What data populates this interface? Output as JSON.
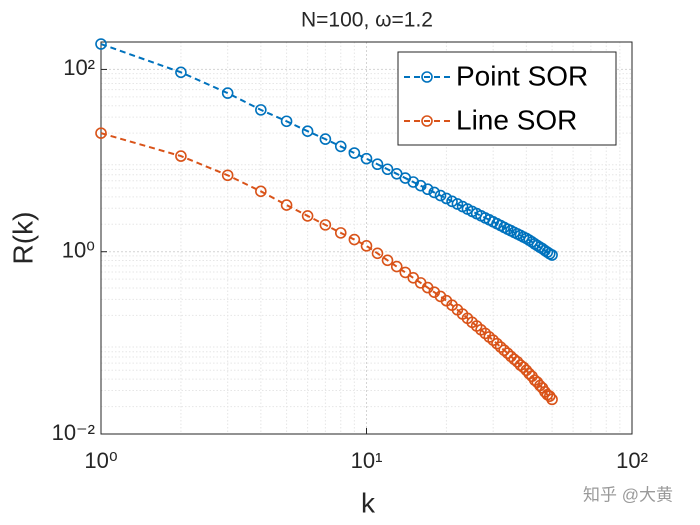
{
  "chart_data": {
    "type": "line",
    "title": "N=100, ω=1.2",
    "xlabel": "k",
    "ylabel": "R(k)",
    "x": [
      1,
      2,
      3,
      4,
      5,
      6,
      7,
      8,
      9,
      10,
      11,
      12,
      13,
      14,
      15,
      16,
      17,
      18,
      19,
      20,
      21,
      22,
      23,
      24,
      25,
      26,
      27,
      28,
      29,
      30,
      31,
      32,
      33,
      34,
      35,
      36,
      37,
      38,
      39,
      40,
      41,
      42,
      43,
      44,
      45,
      46,
      47,
      48,
      49,
      50
    ],
    "series": [
      {
        "name": "Point SOR",
        "color": "#0072BD",
        "values": [
          190,
          93,
          55,
          36,
          27,
          21,
          17.2,
          14.3,
          12.1,
          10.5,
          9.12,
          8.03,
          7.16,
          6.43,
          5.82,
          5.3,
          4.85,
          4.47,
          4.13,
          3.84,
          3.57,
          3.34,
          3.13,
          2.94,
          2.77,
          2.62,
          2.48,
          2.35,
          2.24,
          2.13,
          2.03,
          1.94,
          1.85,
          1.77,
          1.7,
          1.63,
          1.57,
          1.51,
          1.45,
          1.4,
          1.34,
          1.28,
          1.22,
          1.17,
          1.12,
          1.08,
          1.03,
          0.99,
          0.95,
          0.92
        ]
      },
      {
        "name": "Line SOR",
        "color": "#D95319",
        "values": [
          20,
          11.2,
          6.9,
          4.6,
          3.25,
          2.47,
          1.97,
          1.61,
          1.36,
          1.16,
          0.96,
          0.805,
          0.687,
          0.593,
          0.517,
          0.455,
          0.404,
          0.36,
          0.323,
          0.29,
          0.259,
          0.231,
          0.207,
          0.186,
          0.168,
          0.153,
          0.139,
          0.127,
          0.116,
          0.107,
          0.098,
          0.09,
          0.083,
          0.077,
          0.071,
          0.066,
          0.062,
          0.057,
          0.054,
          0.05,
          0.046,
          0.043,
          0.039,
          0.037,
          0.034,
          0.032,
          0.029,
          0.027,
          0.026,
          0.024
        ]
      }
    ],
    "xlim": [
      1,
      100
    ],
    "ylim": [
      0.01,
      200
    ],
    "xscale": "log",
    "yscale": "log",
    "xticks": [
      {
        "value": 1,
        "label": "10⁰"
      },
      {
        "value": 10,
        "label": "10¹"
      },
      {
        "value": 100,
        "label": "10²"
      }
    ],
    "yticks": [
      {
        "value": 0.01,
        "label": "10⁻²"
      },
      {
        "value": 1,
        "label": "10⁰"
      },
      {
        "value": 100,
        "label": "10²"
      }
    ],
    "grid": true,
    "minor_grid": true,
    "legend": "upper right"
  },
  "watermark": "知乎 @大黄"
}
